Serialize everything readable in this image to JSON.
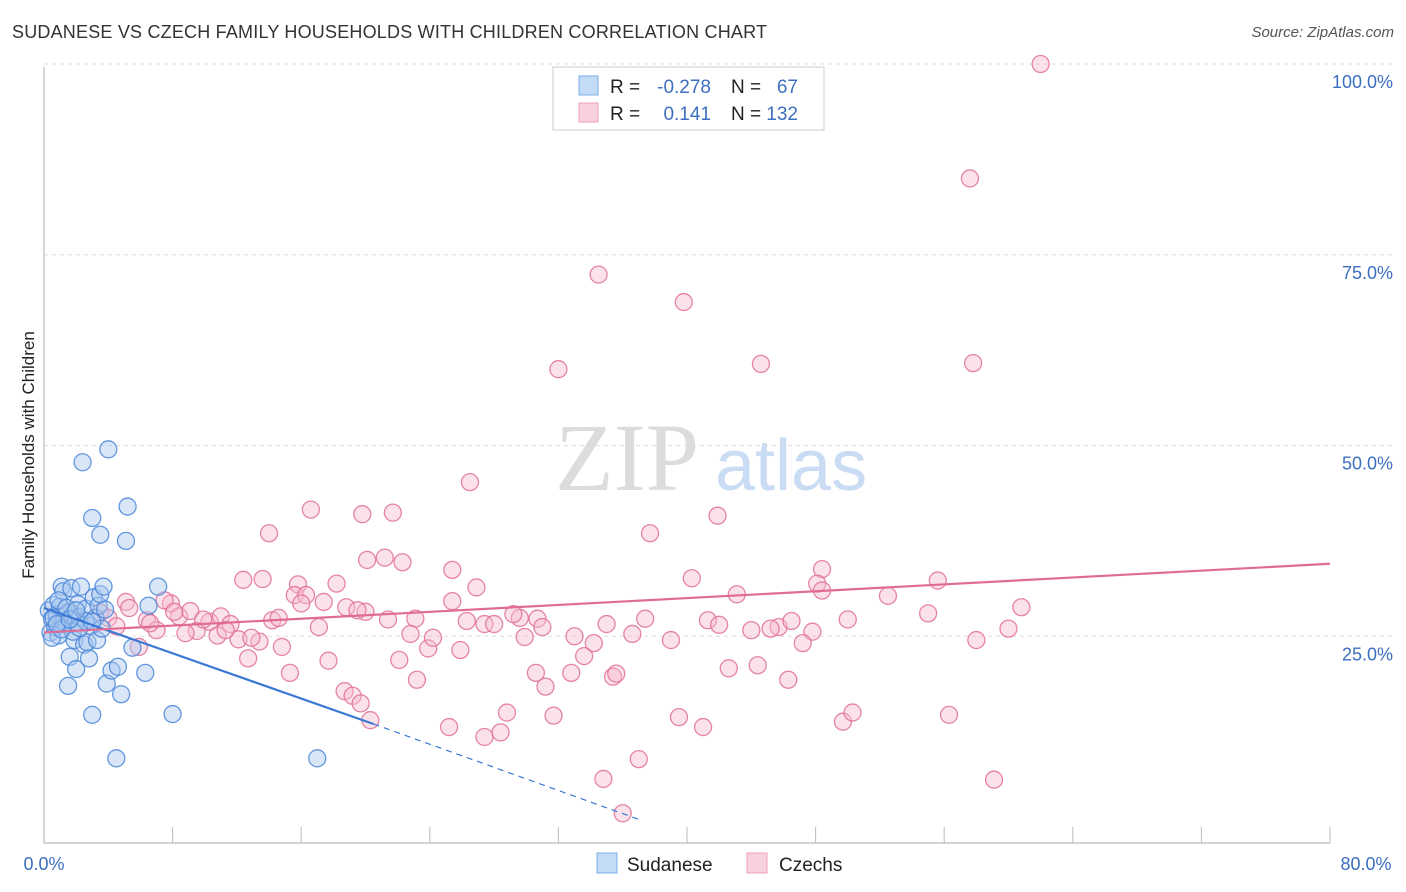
{
  "header": {
    "title": "SUDANESE VS CZECH FAMILY HOUSEHOLDS WITH CHILDREN CORRELATION CHART",
    "source": "Source: ZipAtlas.com"
  },
  "watermark": {
    "zip": "ZIP",
    "atlas": "atlas"
  },
  "legend": {
    "rows": [
      {
        "r_label": "R =",
        "r_value": "-0.278",
        "n_label": "N =",
        "n_value": "67",
        "color": "#7aaee8"
      },
      {
        "r_label": "R =",
        "r_value": "0.141",
        "n_label": "N =",
        "n_value": "132",
        "color": "#f0a0bc"
      }
    ]
  },
  "chart_data": {
    "type": "scatter",
    "title": "SUDANESE VS CZECH FAMILY HOUSEHOLDS WITH CHILDREN CORRELATION CHART",
    "xlabel": "",
    "ylabel": "Family Households with Children",
    "xlim": [
      0,
      80
    ],
    "ylim": [
      0,
      100
    ],
    "x_tick_labels": [
      "0.0%",
      "80.0%"
    ],
    "y_tick_labels": [
      "25.0%",
      "50.0%",
      "75.0%",
      "100.0%"
    ],
    "y_ticks": [
      25,
      50,
      75,
      100
    ],
    "grid": true,
    "legend_position": "bottom",
    "series": [
      {
        "name": "Sudanese",
        "color": "#4a86d8",
        "fill": "#a9c8f0",
        "trend": {
          "x": [
            0,
            20.5
          ],
          "y": [
            28.7,
            13.5
          ],
          "dashed_extension_to": [
            37,
            1
          ]
        },
        "points": [
          [
            0.3,
            28.4
          ],
          [
            0.4,
            25.5
          ],
          [
            0.5,
            27.3
          ],
          [
            0.6,
            29.1
          ],
          [
            0.7,
            26.2
          ],
          [
            0.8,
            27.8
          ],
          [
            0.9,
            25.1
          ],
          [
            1.0,
            28.9
          ],
          [
            1.1,
            31.5
          ],
          [
            1.2,
            30.9
          ],
          [
            1.3,
            27.1
          ],
          [
            1.4,
            26.5
          ],
          [
            1.5,
            28.1
          ],
          [
            1.5,
            18.5
          ],
          [
            1.6,
            22.3
          ],
          [
            1.7,
            31.3
          ],
          [
            1.8,
            27.9
          ],
          [
            1.9,
            24.5
          ],
          [
            2.0,
            26.8
          ],
          [
            2.0,
            20.7
          ],
          [
            2.1,
            29.2
          ],
          [
            2.2,
            27.5
          ],
          [
            2.3,
            31.5
          ],
          [
            2.4,
            47.8
          ],
          [
            2.5,
            23.9
          ],
          [
            2.6,
            28.6
          ],
          [
            2.7,
            24.2
          ],
          [
            2.8,
            22.1
          ],
          [
            2.9,
            26.3
          ],
          [
            3.0,
            14.7
          ],
          [
            3.0,
            40.5
          ],
          [
            3.1,
            30.1
          ],
          [
            3.2,
            27.4
          ],
          [
            3.3,
            24.5
          ],
          [
            3.4,
            29.0
          ],
          [
            3.5,
            38.3
          ],
          [
            3.5,
            30.5
          ],
          [
            3.6,
            26.0
          ],
          [
            3.7,
            31.5
          ],
          [
            3.8,
            28.5
          ],
          [
            3.9,
            18.8
          ],
          [
            4.0,
            49.5
          ],
          [
            4.2,
            20.5
          ],
          [
            4.5,
            9.0
          ],
          [
            4.6,
            21.0
          ],
          [
            4.8,
            17.4
          ],
          [
            5.1,
            37.5
          ],
          [
            5.2,
            42.0
          ],
          [
            5.5,
            23.5
          ],
          [
            6.3,
            20.2
          ],
          [
            6.5,
            29.0
          ],
          [
            7.1,
            31.5
          ],
          [
            8.0,
            14.8
          ],
          [
            17.0,
            9.0
          ],
          [
            0.5,
            24.8
          ],
          [
            1.2,
            26.9
          ],
          [
            0.9,
            29.7
          ],
          [
            1.8,
            25.6
          ],
          [
            2.6,
            27.0
          ],
          [
            0.6,
            27.4
          ],
          [
            1.1,
            25.9
          ],
          [
            1.4,
            28.7
          ],
          [
            2.2,
            26.1
          ],
          [
            0.8,
            26.6
          ],
          [
            1.6,
            27.2
          ],
          [
            2.0,
            28.4
          ],
          [
            3.0,
            26.9
          ]
        ]
      },
      {
        "name": "Czechs",
        "color": "#e07098",
        "fill": "#f6bdd0",
        "trend": {
          "x": [
            0,
            80
          ],
          "y": [
            25.5,
            34.5
          ]
        },
        "points": [
          [
            62.0,
            100.0
          ],
          [
            57.6,
            85.0
          ],
          [
            34.5,
            72.4
          ],
          [
            39.8,
            68.8
          ],
          [
            32.0,
            60.0
          ],
          [
            44.6,
            60.7
          ],
          [
            26.5,
            45.2
          ],
          [
            41.9,
            40.8
          ],
          [
            37.7,
            38.5
          ],
          [
            21.7,
            41.2
          ],
          [
            19.8,
            41.0
          ],
          [
            16.6,
            41.6
          ],
          [
            14.0,
            38.5
          ],
          [
            20.1,
            35.0
          ],
          [
            21.2,
            35.3
          ],
          [
            22.3,
            34.7
          ],
          [
            25.4,
            33.7
          ],
          [
            48.4,
            33.8
          ],
          [
            12.4,
            32.4
          ],
          [
            13.6,
            32.5
          ],
          [
            15.8,
            31.8
          ],
          [
            18.2,
            31.9
          ],
          [
            26.9,
            31.4
          ],
          [
            40.3,
            32.6
          ],
          [
            48.1,
            31.9
          ],
          [
            55.6,
            32.3
          ],
          [
            43.1,
            30.5
          ],
          [
            48.4,
            31.0
          ],
          [
            25.4,
            29.6
          ],
          [
            15.6,
            30.4
          ],
          [
            17.4,
            29.5
          ],
          [
            18.8,
            28.8
          ],
          [
            20.0,
            28.2
          ],
          [
            23.1,
            27.3
          ],
          [
            27.4,
            26.6
          ],
          [
            29.6,
            27.4
          ],
          [
            30.7,
            27.3
          ],
          [
            36.6,
            25.3
          ],
          [
            41.3,
            27.1
          ],
          [
            45.7,
            26.2
          ],
          [
            47.8,
            25.6
          ],
          [
            60.8,
            28.8
          ],
          [
            5.1,
            29.5
          ],
          [
            6.4,
            27.1
          ],
          [
            7.0,
            25.8
          ],
          [
            7.9,
            29.3
          ],
          [
            8.4,
            27.6
          ],
          [
            9.1,
            28.3
          ],
          [
            9.5,
            25.7
          ],
          [
            10.3,
            26.9
          ],
          [
            11.0,
            27.6
          ],
          [
            11.6,
            26.6
          ],
          [
            12.1,
            24.6
          ],
          [
            12.7,
            22.1
          ],
          [
            13.4,
            24.3
          ],
          [
            14.2,
            27.1
          ],
          [
            14.8,
            23.6
          ],
          [
            15.3,
            20.2
          ],
          [
            16.3,
            30.4
          ],
          [
            17.7,
            21.8
          ],
          [
            18.7,
            17.8
          ],
          [
            19.2,
            17.2
          ],
          [
            19.7,
            16.2
          ],
          [
            20.3,
            14.0
          ],
          [
            22.1,
            21.9
          ],
          [
            23.2,
            19.3
          ],
          [
            23.9,
            23.4
          ],
          [
            25.2,
            13.1
          ],
          [
            25.9,
            23.2
          ],
          [
            27.4,
            11.8
          ],
          [
            28.4,
            12.4
          ],
          [
            28.8,
            15.0
          ],
          [
            29.9,
            24.9
          ],
          [
            30.6,
            20.2
          ],
          [
            31.2,
            18.4
          ],
          [
            31.7,
            14.6
          ],
          [
            32.8,
            20.2
          ],
          [
            33.6,
            22.4
          ],
          [
            34.2,
            24.1
          ],
          [
            34.8,
            6.3
          ],
          [
            35.4,
            19.7
          ],
          [
            35.6,
            20.1
          ],
          [
            36.0,
            1.8
          ],
          [
            37.0,
            8.9
          ],
          [
            39.5,
            14.4
          ],
          [
            41.0,
            13.1
          ],
          [
            42.6,
            20.8
          ],
          [
            44.4,
            21.2
          ],
          [
            45.2,
            26.0
          ],
          [
            46.3,
            19.3
          ],
          [
            47.2,
            24.1
          ],
          [
            49.7,
            13.8
          ],
          [
            50.3,
            15.0
          ],
          [
            56.3,
            14.7
          ],
          [
            59.1,
            6.2
          ],
          [
            57.8,
            60.8
          ],
          [
            3.5,
            28.1
          ],
          [
            4.0,
            27.4
          ],
          [
            4.5,
            26.3
          ],
          [
            5.3,
            28.7
          ],
          [
            5.9,
            23.6
          ],
          [
            6.6,
            26.7
          ],
          [
            7.5,
            29.7
          ],
          [
            8.1,
            28.2
          ],
          [
            8.8,
            25.4
          ],
          [
            9.9,
            27.2
          ],
          [
            10.8,
            25.1
          ],
          [
            11.3,
            25.8
          ],
          [
            12.9,
            24.8
          ],
          [
            14.6,
            27.4
          ],
          [
            16.0,
            29.3
          ],
          [
            17.1,
            26.2
          ],
          [
            19.5,
            28.4
          ],
          [
            21.4,
            27.2
          ],
          [
            22.8,
            25.3
          ],
          [
            24.2,
            24.8
          ],
          [
            26.3,
            27.0
          ],
          [
            28.0,
            26.6
          ],
          [
            29.2,
            27.9
          ],
          [
            31.0,
            26.2
          ],
          [
            33.0,
            25.0
          ],
          [
            35.0,
            26.6
          ],
          [
            37.4,
            27.3
          ],
          [
            39.0,
            24.5
          ],
          [
            42.0,
            26.5
          ],
          [
            44.0,
            25.8
          ],
          [
            46.5,
            27.0
          ],
          [
            50.0,
            27.2
          ],
          [
            52.5,
            30.3
          ],
          [
            55.0,
            28.0
          ],
          [
            58.0,
            24.5
          ],
          [
            60.0,
            26.0
          ]
        ]
      }
    ]
  },
  "bottom_legend": {
    "items": [
      {
        "label": "Sudanese",
        "color": "#7aaee8"
      },
      {
        "label": "Czechs",
        "color": "#f0a0bc"
      }
    ]
  }
}
